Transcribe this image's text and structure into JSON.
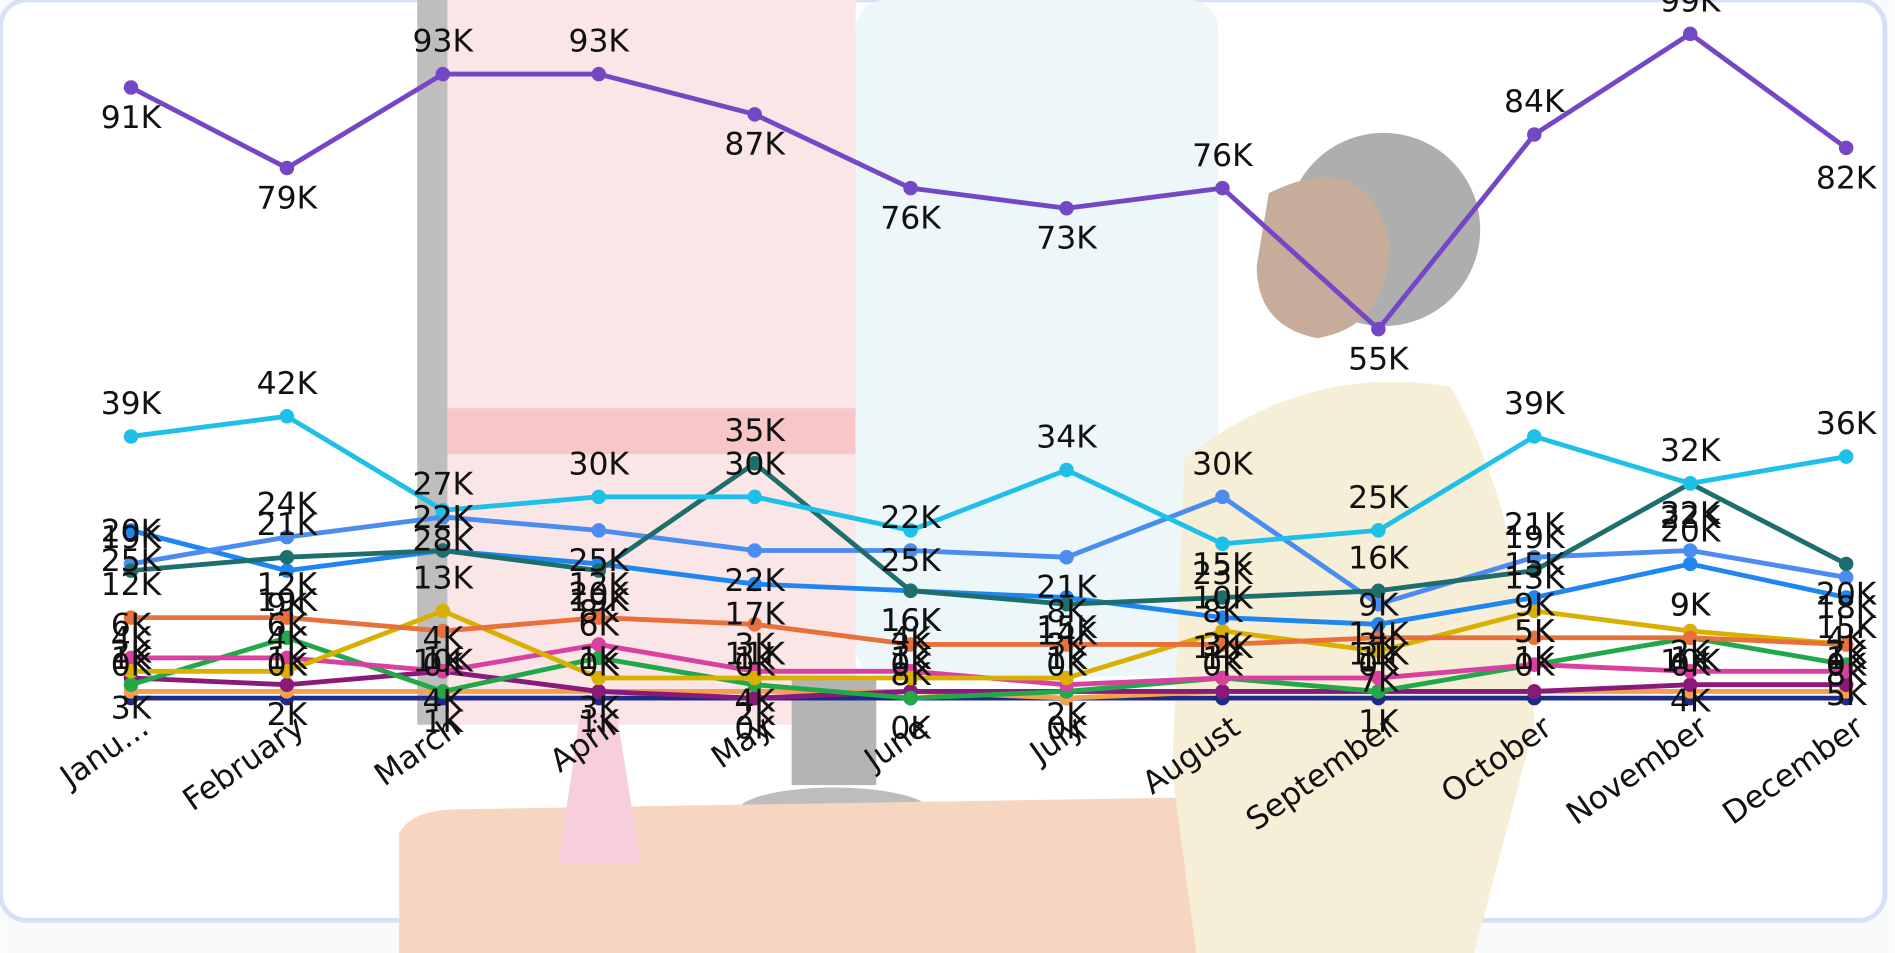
{
  "chart_data": {
    "type": "line",
    "categories": [
      "Janu...",
      "February",
      "March",
      "April",
      "May",
      "June",
      "July",
      "August",
      "September",
      "October",
      "November",
      "December"
    ],
    "series": [
      {
        "color": "#7447c4",
        "values": [
          91,
          79,
          93,
          93,
          87,
          76,
          73,
          76,
          55,
          84,
          99,
          82
        ],
        "value_labels": [
          "91K",
          "79K",
          "93K",
          "93K",
          "87K",
          "76K",
          "73K",
          "76K",
          "55K",
          "84K",
          "99K",
          "82K"
        ]
      },
      {
        "color": "#1ec0e8",
        "values": [
          39,
          42,
          28,
          30,
          30,
          25,
          34,
          23,
          25,
          39,
          32,
          36
        ],
        "value_labels": [
          "39K",
          "42K",
          "28K",
          "30K",
          "30K",
          "25K",
          "34K",
          "23K",
          "25K",
          "39K",
          "32K",
          "36K"
        ]
      },
      {
        "color": "#1e6e6e",
        "values": [
          19,
          21,
          22,
          19,
          35,
          16,
          14,
          15,
          16,
          19,
          32,
          20
        ],
        "value_labels": [
          "19K",
          "21K",
          "22K",
          "19K",
          "35K",
          "16K",
          "14K",
          "15K",
          "16K",
          "19K",
          "32K",
          "20K"
        ]
      },
      {
        "color": "#4a8cf0",
        "values": [
          20,
          24,
          27,
          25,
          22,
          22,
          21,
          30,
          14,
          21,
          22,
          18
        ],
        "value_labels": [
          "20K",
          "24K",
          "27K",
          "25K",
          "22K",
          "22K",
          "21K",
          "30K",
          "14K",
          "21K",
          "22K",
          "18K"
        ]
      },
      {
        "color": "#1f86f0",
        "values": [
          25,
          19,
          22,
          20,
          17,
          16,
          15,
          12,
          11,
          15,
          20,
          15
        ],
        "value_labels": [
          "25K",
          "19K",
          "22K",
          "20K",
          "17K",
          "16K",
          "15K",
          "12K",
          "11K",
          "15K",
          "20K",
          "15K"
        ]
      },
      {
        "color": "#e8703a",
        "values": [
          12,
          12,
          10,
          12,
          11,
          8,
          8,
          8,
          9,
          9,
          9,
          8
        ],
        "value_labels": [
          "12K",
          "12K",
          "10K",
          "12K",
          "11K",
          "8K",
          "8K",
          "8K",
          "9K",
          "9K",
          "9K",
          "8K"
        ]
      },
      {
        "color": "#d9b000",
        "values": [
          4,
          4,
          13,
          3,
          3,
          3,
          3,
          10,
          7,
          13,
          10,
          8
        ],
        "value_labels": [
          "4K",
          "4K",
          "13K",
          "3K",
          "3K",
          "3K",
          "3K",
          "10K",
          "7K",
          "13K",
          "10K",
          "8K"
        ]
      },
      {
        "color": "#d940a0",
        "values": [
          6,
          6,
          4,
          8,
          4,
          4,
          2,
          3,
          3,
          5,
          4,
          4
        ],
        "value_labels": [
          "6K",
          "6K",
          "4K",
          "8K",
          "4K",
          "4K",
          "2K",
          "3K",
          "3K",
          "5K",
          "4K",
          "4K"
        ]
      },
      {
        "color": "#22a84a",
        "values": [
          2,
          9,
          1,
          6,
          2,
          0,
          1,
          3,
          1,
          5,
          9,
          5
        ],
        "value_labels": [
          "2K",
          "9K",
          "1K",
          "6K",
          "2K",
          "0K",
          "1K",
          "3K",
          "1K",
          "5K",
          "9K",
          "5K"
        ]
      },
      {
        "color": "#8a1a7a",
        "values": [
          3,
          2,
          4,
          1,
          0,
          1,
          1,
          1,
          1,
          1,
          2,
          2
        ],
        "value_labels": [
          "3K",
          "2K",
          "4K",
          "1K",
          "0K",
          "1K",
          "1K",
          "1K",
          "1K",
          "1K",
          "2K",
          "2K"
        ]
      },
      {
        "color": "#f5a04a",
        "values": [
          1,
          1,
          1,
          1,
          1,
          1,
          0,
          1,
          1,
          1,
          1,
          1
        ],
        "value_labels": [
          "1K",
          "1K",
          "1K",
          "1K",
          "1K",
          "1K",
          "0K",
          "1K",
          "1K",
          "1K",
          "1K",
          "1K"
        ]
      },
      {
        "color": "#1e2a8a",
        "values": [
          0,
          0,
          0,
          0,
          0,
          0,
          0,
          0,
          0,
          0,
          0,
          0
        ],
        "value_labels": [
          "0K",
          "0K",
          "0K",
          "0K",
          "0K",
          "0K",
          "0K",
          "0K",
          "0K",
          "0K",
          "0K",
          "0K"
        ]
      }
    ]
  }
}
